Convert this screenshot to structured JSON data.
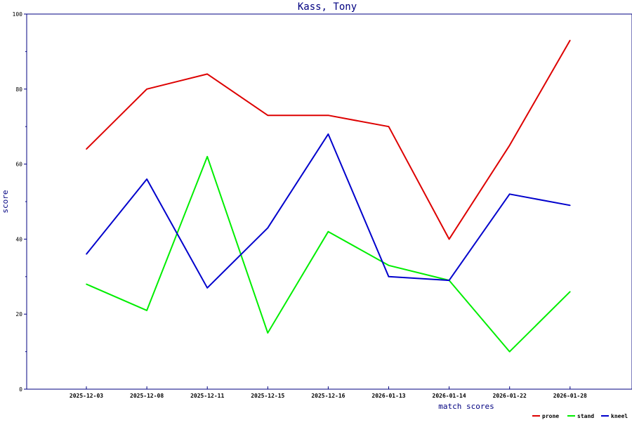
{
  "chart_data": {
    "type": "line",
    "title": "Kass, Tony",
    "xlabel": "match scores",
    "ylabel": "score",
    "categories": [
      "2025-12-03",
      "2025-12-08",
      "2025-12-11",
      "2025-12-15",
      "2025-12-16",
      "2026-01-13",
      "2026-01-14",
      "2026-01-22",
      "2026-01-28"
    ],
    "ylim": [
      0,
      100
    ],
    "yticks": [
      0,
      20,
      40,
      60,
      80,
      100
    ],
    "grid": false,
    "legend_position": "bottom-right",
    "series": [
      {
        "name": "prone",
        "color": "#dd0000",
        "values": [
          64,
          80,
          84,
          73,
          73,
          70,
          40,
          65,
          93
        ]
      },
      {
        "name": "stand",
        "color": "#00ee00",
        "values": [
          28,
          21,
          62,
          15,
          42,
          33,
          29,
          10,
          26
        ]
      },
      {
        "name": "kneel",
        "color": "#0000cc",
        "values": [
          36,
          56,
          27,
          43,
          68,
          30,
          29,
          52,
          49
        ]
      }
    ],
    "axis_color": "#000080"
  }
}
